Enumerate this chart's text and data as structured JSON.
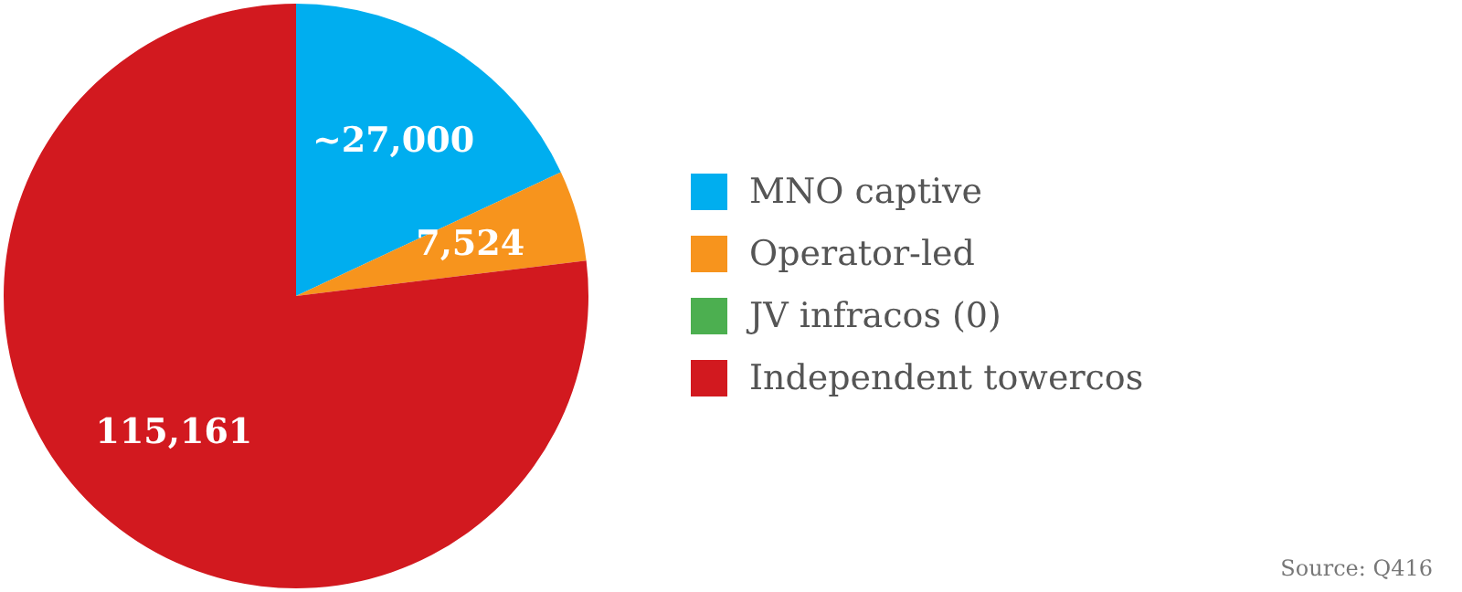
{
  "chart_data": {
    "type": "pie",
    "categories": [
      "MNO captive",
      "Operator-led",
      "JV infracos (0)",
      "Independent towercos"
    ],
    "values": [
      27000,
      7524,
      0,
      115161
    ],
    "value_labels": [
      "~27,000",
      "7,524",
      null,
      "115,161"
    ],
    "colors": [
      "#00aeef",
      "#f7941d",
      "#4caf50",
      "#d2191f"
    ],
    "legend": "right",
    "annotations": [
      "Source: Q416"
    ]
  }
}
